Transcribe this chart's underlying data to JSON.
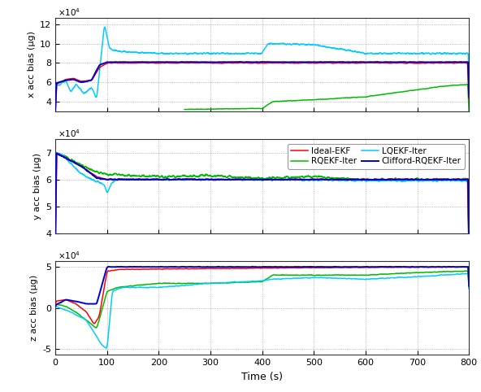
{
  "xlabel": "Time (s)",
  "ylabels": [
    "x acc bias (μg)",
    "y acc bias (μg)",
    "z acc bias (μg)"
  ],
  "subplot1": {
    "ylim": [
      30000,
      127000
    ],
    "yticks": [
      40000,
      60000,
      80000,
      100000,
      120000
    ],
    "ytick_labels": [
      "4",
      "6",
      "8",
      "10",
      "12"
    ]
  },
  "subplot2": {
    "ylim": [
      40000,
      75000
    ],
    "yticks": [
      40000,
      50000,
      60000,
      70000
    ],
    "ytick_labels": [
      "4",
      "5",
      "6",
      "7"
    ]
  },
  "subplot3": {
    "ylim": [
      -57000,
      57000
    ],
    "yticks": [
      -50000,
      0,
      50000
    ],
    "ytick_labels": [
      "-5",
      "0",
      "5"
    ]
  },
  "xticks": [
    0,
    100,
    200,
    300,
    400,
    500,
    600,
    700,
    800
  ],
  "colors": {
    "ideal_ekf": "#ff0000",
    "lqekf_iter": "#00ccff",
    "rqekf_iter": "#00bb00",
    "clifford": "#0000cc"
  },
  "background_color": "#ffffff",
  "grid_color": "#888888",
  "grid_style": ":"
}
